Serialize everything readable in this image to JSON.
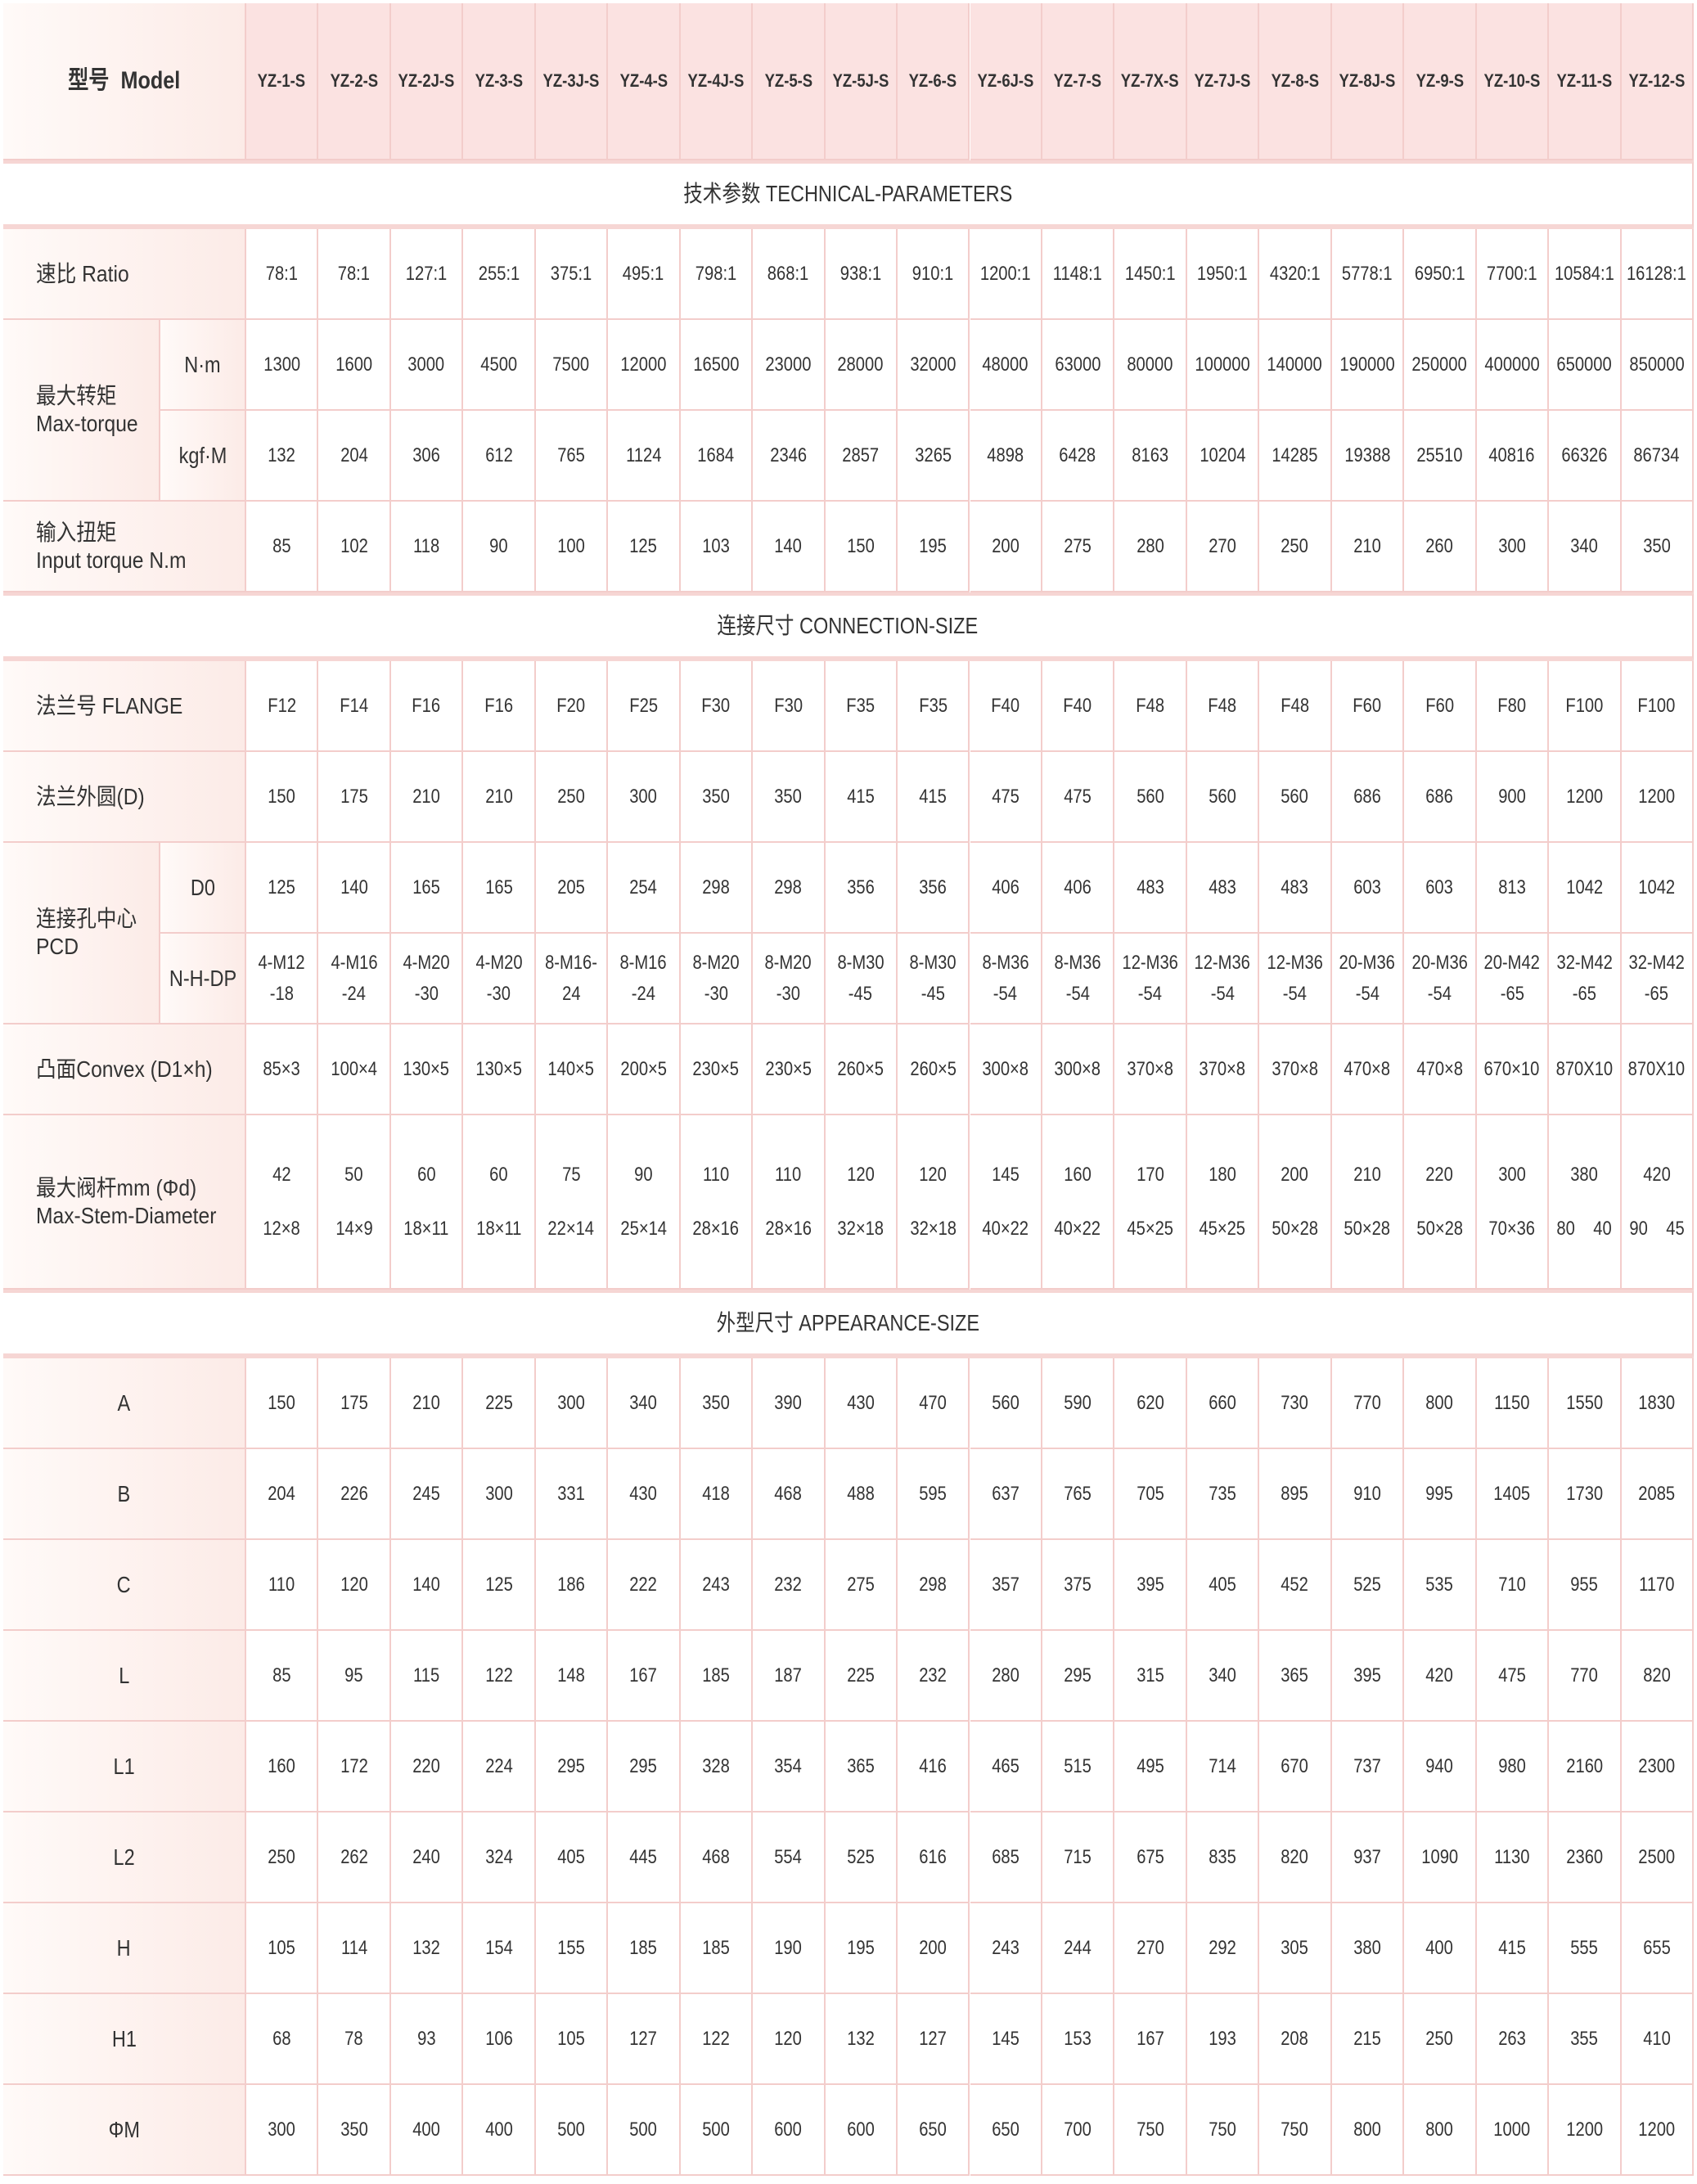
{
  "header": {
    "model_label": "型号  Model",
    "models": [
      "YZ-1-S",
      "YZ-2-S",
      "YZ-2J-S",
      "YZ-3-S",
      "YZ-3J-S",
      "YZ-4-S",
      "YZ-4J-S",
      "YZ-5-S",
      "YZ-5J-S",
      "YZ-6-S",
      "YZ-6J-S",
      "YZ-7-S",
      "YZ-7X-S",
      "YZ-7J-S",
      "YZ-8-S",
      "YZ-8J-S",
      "YZ-9-S",
      "YZ-10-S",
      "YZ-11-S",
      "YZ-12-S"
    ]
  },
  "sections": [
    {
      "title": "技术参数 TECHNICAL-PARAMETERS",
      "rows": [
        {
          "label": [
            "速比 Ratio"
          ],
          "values": [
            "78:1",
            "78:1",
            "127:1",
            "255:1",
            "375:1",
            "495:1",
            "798:1",
            "868:1",
            "938:1",
            "910:1",
            "1200:1",
            "1148:1",
            "1450:1",
            "1950:1",
            "4320:1",
            "5778:1",
            "6950:1",
            "7700:1",
            "10584:1",
            "16128:1"
          ]
        },
        {
          "label": [
            "最大转矩",
            "Max-torque"
          ],
          "subrows": [
            {
              "label": "N·m",
              "values": [
                "1300",
                "1600",
                "3000",
                "4500",
                "7500",
                "12000",
                "16500",
                "23000",
                "28000",
                "32000",
                "48000",
                "63000",
                "80000",
                "100000",
                "140000",
                "190000",
                "250000",
                "400000",
                "650000",
                "850000"
              ]
            },
            {
              "label": "kgf·M",
              "values": [
                "132",
                "204",
                "306",
                "612",
                "765",
                "1124",
                "1684",
                "2346",
                "2857",
                "3265",
                "4898",
                "6428",
                "8163",
                "10204",
                "14285",
                "19388",
                "25510",
                "40816",
                "66326",
                "86734"
              ]
            }
          ]
        },
        {
          "label": [
            "输入扭矩",
            "Input torque N.m"
          ],
          "values": [
            "85",
            "102",
            "118",
            "90",
            "100",
            "125",
            "103",
            "140",
            "150",
            "195",
            "200",
            "275",
            "280",
            "270",
            "250",
            "210",
            "260",
            "300",
            "340",
            "350"
          ]
        }
      ]
    },
    {
      "title": "连接尺寸 CONNECTION-SIZE",
      "rows": [
        {
          "label": [
            "法兰号 FLANGE"
          ],
          "values": [
            "F12",
            "F14",
            "F16",
            "F16",
            "F20",
            "F25",
            "F30",
            "F30",
            "F35",
            "F35",
            "F40",
            "F40",
            "F48",
            "F48",
            "F48",
            "F60",
            "F60",
            "F80",
            "F100",
            "F100"
          ]
        },
        {
          "label": [
            "法兰外圆(D)"
          ],
          "values": [
            "150",
            "175",
            "210",
            "210",
            "250",
            "300",
            "350",
            "350",
            "415",
            "415",
            "475",
            "475",
            "560",
            "560",
            "560",
            "686",
            "686",
            "900",
            "1200",
            "1200"
          ]
        },
        {
          "label": [
            "连接孔中心",
            "PCD"
          ],
          "subrows": [
            {
              "label": "D0",
              "values": [
                "125",
                "140",
                "165",
                "165",
                "205",
                "254",
                "298",
                "298",
                "356",
                "356",
                "406",
                "406",
                "483",
                "483",
                "483",
                "603",
                "603",
                "813",
                "1042",
                "1042"
              ]
            },
            {
              "label": "N-H-DP",
              "values": [
                [
                  "4-M12",
                  "-18"
                ],
                [
                  "4-M16",
                  "-24"
                ],
                [
                  "4-M20",
                  "-30"
                ],
                [
                  "4-M20",
                  "-30"
                ],
                [
                  "8-M16-",
                  "24"
                ],
                [
                  "8-M16",
                  "-24"
                ],
                [
                  "8-M20",
                  "-30"
                ],
                [
                  "8-M20",
                  "-30"
                ],
                [
                  "8-M30",
                  "-45"
                ],
                [
                  "8-M30",
                  "-45"
                ],
                [
                  "8-M36",
                  "-54"
                ],
                [
                  "8-M36",
                  "-54"
                ],
                [
                  "12-M36",
                  "-54"
                ],
                [
                  "12-M36",
                  "-54"
                ],
                [
                  "12-M36",
                  "-54"
                ],
                [
                  "20-M36",
                  "-54"
                ],
                [
                  "20-M36",
                  "-54"
                ],
                [
                  "20-M42",
                  "-65"
                ],
                [
                  "32-M42",
                  "-65"
                ],
                [
                  "32-M42",
                  "-65"
                ]
              ]
            }
          ]
        },
        {
          "label": [
            "凸面Convex (D1×h)"
          ],
          "values": [
            "85×3",
            "100×4",
            "130×5",
            "130×5",
            "140×5",
            "200×5",
            "230×5",
            "230×5",
            "260×5",
            "260×5",
            "300×8",
            "300×8",
            "370×8",
            "370×8",
            "370×8",
            "470×8",
            "470×8",
            "670×10",
            "870X10",
            "870X10"
          ]
        },
        {
          "label": [
            "最大阀杆mm (Φd)",
            "Max-Stem-Diameter"
          ],
          "values": [
            [
              "42",
              "12×8"
            ],
            [
              "50",
              "14×9"
            ],
            [
              "60",
              "18×11"
            ],
            [
              "60",
              "18×11"
            ],
            [
              "75",
              "22×14"
            ],
            [
              "90",
              "25×14"
            ],
            [
              "110",
              "28×16"
            ],
            [
              "110",
              "28×16"
            ],
            [
              "120",
              "32×18"
            ],
            [
              "120",
              "32×18"
            ],
            [
              "145",
              "40×22"
            ],
            [
              "160",
              "40×22"
            ],
            [
              "170",
              "45×25"
            ],
            [
              "180",
              "45×25"
            ],
            [
              "200",
              "50×28"
            ],
            [
              "210",
              "50×28"
            ],
            [
              "220",
              "50×28"
            ],
            [
              "300",
              "70×36"
            ],
            [
              "380",
              "80    40"
            ],
            [
              "420",
              "90    45"
            ]
          ]
        }
      ]
    },
    {
      "title": "外型尺寸 APPEARANCE-SIZE",
      "rows": [
        {
          "label": [
            "A"
          ],
          "values": [
            "150",
            "175",
            "210",
            "225",
            "300",
            "340",
            "350",
            "390",
            "430",
            "470",
            "560",
            "590",
            "620",
            "660",
            "730",
            "770",
            "800",
            "1150",
            "1550",
            "1830"
          ]
        },
        {
          "label": [
            "B"
          ],
          "values": [
            "204",
            "226",
            "245",
            "300",
            "331",
            "430",
            "418",
            "468",
            "488",
            "595",
            "637",
            "765",
            "705",
            "735",
            "895",
            "910",
            "995",
            "1405",
            "1730",
            "2085"
          ]
        },
        {
          "label": [
            "C"
          ],
          "values": [
            "110",
            "120",
            "140",
            "125",
            "186",
            "222",
            "243",
            "232",
            "275",
            "298",
            "357",
            "375",
            "395",
            "405",
            "452",
            "525",
            "535",
            "710",
            "955",
            "1170"
          ]
        },
        {
          "label": [
            "L"
          ],
          "values": [
            "85",
            "95",
            "115",
            "122",
            "148",
            "167",
            "185",
            "187",
            "225",
            "232",
            "280",
            "295",
            "315",
            "340",
            "365",
            "395",
            "420",
            "475",
            "770",
            "820"
          ]
        },
        {
          "label": [
            "L1"
          ],
          "values": [
            "160",
            "172",
            "220",
            "224",
            "295",
            "295",
            "328",
            "354",
            "365",
            "416",
            "465",
            "515",
            "495",
            "714",
            "670",
            "737",
            "940",
            "980",
            "2160",
            "2300"
          ]
        },
        {
          "label": [
            "L2"
          ],
          "values": [
            "250",
            "262",
            "240",
            "324",
            "405",
            "445",
            "468",
            "554",
            "525",
            "616",
            "685",
            "715",
            "675",
            "835",
            "820",
            "937",
            "1090",
            "1130",
            "2360",
            "2500"
          ]
        },
        {
          "label": [
            "H"
          ],
          "values": [
            "105",
            "114",
            "132",
            "154",
            "155",
            "185",
            "185",
            "190",
            "195",
            "200",
            "243",
            "244",
            "270",
            "292",
            "305",
            "380",
            "400",
            "415",
            "555",
            "655"
          ]
        },
        {
          "label": [
            "H1"
          ],
          "values": [
            "68",
            "78",
            "93",
            "106",
            "105",
            "127",
            "122",
            "120",
            "132",
            "127",
            "145",
            "153",
            "167",
            "193",
            "208",
            "215",
            "250",
            "263",
            "355",
            "410"
          ]
        },
        {
          "label": [
            "ΦM"
          ],
          "values": [
            "300",
            "350",
            "400",
            "400",
            "500",
            "500",
            "500",
            "600",
            "600",
            "650",
            "650",
            "700",
            "750",
            "750",
            "750",
            "800",
            "800",
            "1000",
            "1200",
            "1200"
          ]
        }
      ]
    }
  ]
}
